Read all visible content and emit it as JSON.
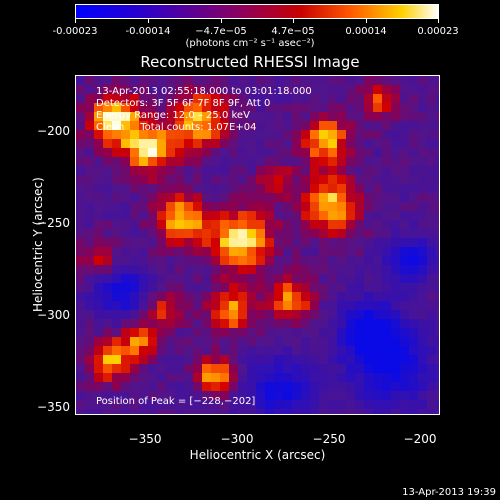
{
  "colorbar": {
    "ticks": [
      "-0.00023",
      "-0.00014",
      "−4.7e−05",
      "4.7e−05",
      "0.00014",
      "0.00023"
    ],
    "units": "(photons cm⁻² s⁻¹ asec⁻²)"
  },
  "title": "Reconstructed RHESSI Image",
  "info": {
    "line1": "13-Apr-2013 02:55:18.000 to 03:01:18.000",
    "line2": "Detectors: 3F 5F 6F 7F 8F 9F, Att 0",
    "line3": "Energy Range: 12.0 – 25.0 keV",
    "line4": "Clean     Total counts: 1.07E+04",
    "peak": "Position of Peak = [−228,−202]"
  },
  "axes": {
    "xlabel": "Heliocentric X (arcsec)",
    "ylabel": "Heliocentric Y (arcsec)",
    "xticks": [
      "−350",
      "−300",
      "−250",
      "−200"
    ],
    "yticks": [
      "−200",
      "−250",
      "−300",
      "−350"
    ]
  },
  "timestamp": "13-Apr-2013 19:39"
}
